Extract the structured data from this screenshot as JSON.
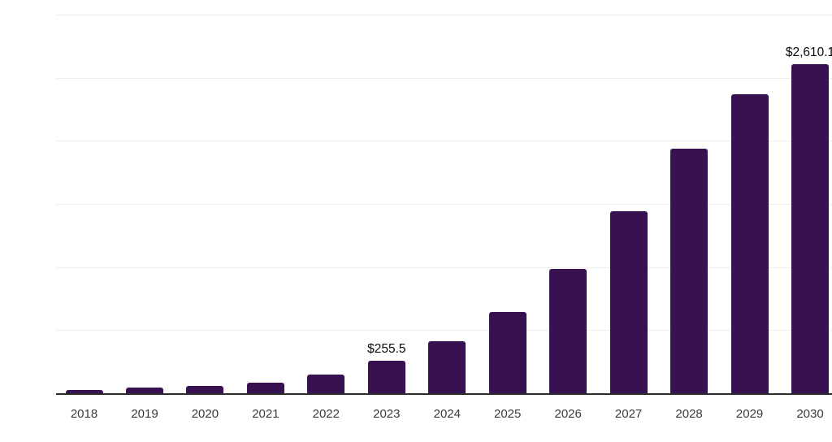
{
  "chart_data": {
    "type": "bar",
    "title": "",
    "xlabel": "",
    "ylabel": "",
    "categories": [
      "2018",
      "2019",
      "2020",
      "2021",
      "2022",
      "2023",
      "2024",
      "2025",
      "2026",
      "2027",
      "2028",
      "2029",
      "2030"
    ],
    "values": [
      28,
      44,
      59,
      87,
      148,
      255.5,
      415,
      647,
      988,
      1445,
      1937,
      2368,
      2610.1
    ],
    "data_labels": {
      "2023": "$255.5",
      "2030": "$2,610.1"
    },
    "ylim": [
      0,
      3000
    ],
    "gridline_step": 500,
    "grid": "horizontal-only",
    "legend": "none",
    "y_axis_tick_labels_visible": false,
    "colors": {
      "bar": "#381150",
      "gridline": "#ededed",
      "axis_line": "#2b2b2b",
      "tick_label": "#3a3a3a",
      "value_label": "#0a0a0a",
      "background": "#ffffff"
    }
  }
}
